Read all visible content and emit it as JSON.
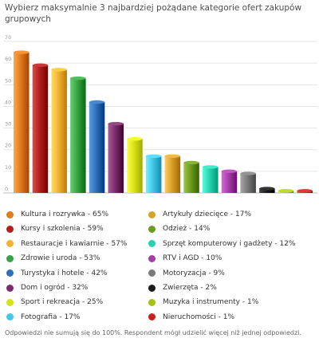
{
  "chart_data": {
    "type": "bar",
    "title": "Wybierz maksymalnie 3 najbardziej pożądane kategorie ofert zakupów grupowych",
    "ylim": [
      0,
      70
    ],
    "yticks": [
      0,
      10,
      20,
      30,
      40,
      50,
      60,
      70
    ],
    "categories": [
      "Kultura i rozrywka",
      "Kursy i szkolenia",
      "Restauracje i kawiarnie",
      "Zdrowie i uroda",
      "Turystyka i hotele",
      "Dom i ogród",
      "Sport i rekreacja",
      "Fotografia",
      "Artykuły dziecięce",
      "Odzież",
      "Sprzęt komputerowy i gadżety",
      "RTV i AGD",
      "Motoryzacja",
      "Zwierzęta",
      "Muzyka i instrumenty",
      "Nieruchomości"
    ],
    "values": [
      65,
      59,
      57,
      53,
      42,
      32,
      25,
      17,
      17,
      14,
      12,
      10,
      9,
      2,
      1,
      1
    ],
    "colors": [
      "#e07b1e",
      "#b0201c",
      "#f2b233",
      "#3aa346",
      "#2f6fb8",
      "#7a2d6a",
      "#d8e21a",
      "#44c6e8",
      "#d9a02a",
      "#6e9a1f",
      "#2ad1b0",
      "#a43fa7",
      "#7a7a7a",
      "#1a1a1a",
      "#a6c21a",
      "#c8201c"
    ],
    "legend_labels": [
      "Kultura i rozrywka - 65%",
      "Kursy i szkolenia - 59%",
      "Restauracje i kawiarnie - 57%",
      "Zdrowie i uroda - 53%",
      "Turystyka i hotele - 42%",
      "Dom i ogród - 32%",
      "Sport i rekreacja - 25%",
      "Fotografia - 17%",
      "Artykuły dziecięce - 17%",
      "Odzież - 14%",
      "Sprzęt komputerowy i gadżety - 12%",
      "RTV i AGD - 10%",
      "Motoryzacja - 9%",
      "Zwierzęta - 2%",
      "Muzyka i instrumenty - 1%",
      "Nieruchomości - 1%"
    ],
    "grid": true,
    "legend_position": "bottom"
  },
  "note": "Odpowiedzi nie sumują się do 100%. Respondent mógł udzielić więcej niż jednej odpowiedzi."
}
